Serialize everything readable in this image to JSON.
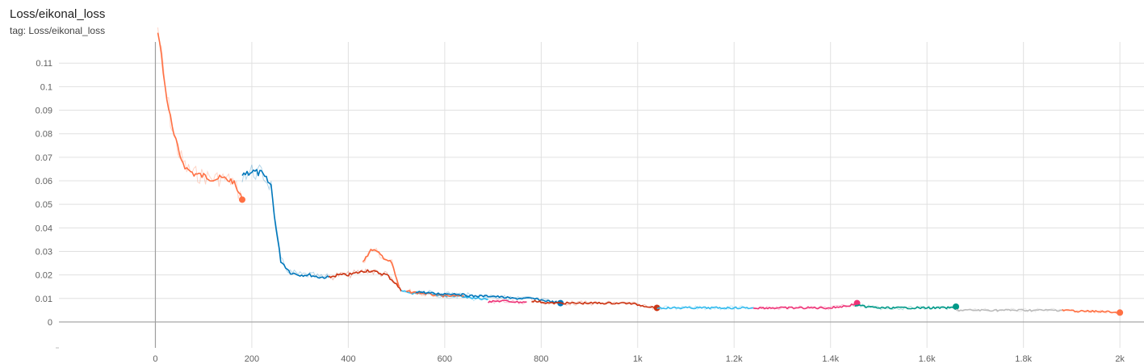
{
  "header": {
    "title": "Loss/eikonal_loss",
    "tag": "tag: Loss/eikonal_loss"
  },
  "chart_data": {
    "type": "line",
    "title": "Loss/eikonal_loss",
    "xlabel": "",
    "ylabel": "",
    "xlim": [
      -200,
      2050
    ],
    "ylim": [
      -0.011,
      0.119
    ],
    "grid": true,
    "xticks": [
      {
        "value": 0,
        "label": "0"
      },
      {
        "value": 200,
        "label": "200"
      },
      {
        "value": 400,
        "label": "400"
      },
      {
        "value": 600,
        "label": "600"
      },
      {
        "value": 800,
        "label": "800"
      },
      {
        "value": 1000,
        "label": "1k"
      },
      {
        "value": 1200,
        "label": "1.2k"
      },
      {
        "value": 1400,
        "label": "1.4k"
      },
      {
        "value": 1600,
        "label": "1.6k"
      },
      {
        "value": 1800,
        "label": "1.8k"
      },
      {
        "value": 2000,
        "label": "2k"
      }
    ],
    "yticks": [
      {
        "value": 0,
        "label": "0"
      },
      {
        "value": 0.01,
        "label": "0.01"
      },
      {
        "value": 0.02,
        "label": "0.02"
      },
      {
        "value": 0.03,
        "label": "0.03"
      },
      {
        "value": 0.04,
        "label": "0.04"
      },
      {
        "value": 0.05,
        "label": "0.05"
      },
      {
        "value": 0.06,
        "label": "0.06"
      },
      {
        "value": 0.07,
        "label": "0.07"
      },
      {
        "value": 0.08,
        "label": "0.08"
      },
      {
        "value": 0.09,
        "label": "0.09"
      },
      {
        "value": 0.1,
        "label": "0.1"
      },
      {
        "value": 0.11,
        "label": "0.11"
      }
    ],
    "series": [
      {
        "color": "#ff7043",
        "x": [
          5,
          20,
          35,
          50,
          65,
          80,
          100,
          120,
          140,
          160,
          180
        ],
        "y": [
          0.125,
          0.1,
          0.082,
          0.071,
          0.065,
          0.063,
          0.062,
          0.061,
          0.061,
          0.06,
          0.052
        ],
        "end_marker": true
      },
      {
        "color": "#0077bb",
        "x": [
          180,
          200,
          220,
          240,
          250,
          260,
          280,
          300,
          320,
          340,
          360
        ],
        "y": [
          0.063,
          0.064,
          0.063,
          0.058,
          0.04,
          0.026,
          0.021,
          0.02,
          0.02,
          0.019,
          0.019
        ]
      },
      {
        "color": "#cc3311",
        "x": [
          360,
          380,
          400,
          420,
          440,
          460,
          480,
          500,
          510
        ],
        "y": [
          0.019,
          0.02,
          0.02,
          0.021,
          0.022,
          0.021,
          0.02,
          0.016,
          0.013
        ]
      },
      {
        "color": "#ff7043",
        "x": [
          430,
          450,
          470,
          490,
          505
        ],
        "y": [
          0.026,
          0.031,
          0.028,
          0.025,
          0.015
        ]
      },
      {
        "color": "#33bbee",
        "x": [
          510,
          540,
          570,
          600,
          630,
          660,
          690
        ],
        "y": [
          0.013,
          0.012,
          0.012,
          0.011,
          0.011,
          0.01,
          0.0095
        ]
      },
      {
        "color": "#ff7043",
        "x": [
          520,
          560,
          600,
          640
        ],
        "y": [
          0.013,
          0.012,
          0.011,
          0.011
        ]
      },
      {
        "color": "#0077bb",
        "x": [
          540,
          580,
          620,
          660,
          700,
          740,
          780,
          810,
          840
        ],
        "y": [
          0.013,
          0.012,
          0.012,
          0.011,
          0.011,
          0.01,
          0.01,
          0.009,
          0.008
        ],
        "end_marker": true
      },
      {
        "color": "#ee3377",
        "x": [
          690,
          720,
          750,
          770
        ],
        "y": [
          0.0085,
          0.009,
          0.0085,
          0.0085
        ]
      },
      {
        "color": "#cc3311",
        "x": [
          780,
          820,
          860,
          900,
          940,
          980,
          1010,
          1040
        ],
        "y": [
          0.009,
          0.008,
          0.008,
          0.008,
          0.008,
          0.008,
          0.007,
          0.006
        ],
        "end_marker": true
      },
      {
        "color": "#33bbee",
        "x": [
          1040,
          1080,
          1120,
          1160,
          1200,
          1240
        ],
        "y": [
          0.006,
          0.006,
          0.006,
          0.006,
          0.006,
          0.006
        ]
      },
      {
        "color": "#ee3377",
        "x": [
          1240,
          1280,
          1320,
          1360,
          1400,
          1440,
          1455
        ],
        "y": [
          0.006,
          0.006,
          0.006,
          0.006,
          0.006,
          0.007,
          0.008
        ],
        "end_marker": true
      },
      {
        "color": "#009988",
        "x": [
          1450,
          1500,
          1550,
          1600,
          1650,
          1660
        ],
        "y": [
          0.007,
          0.006,
          0.006,
          0.006,
          0.006,
          0.0065
        ],
        "end_marker": true
      },
      {
        "color": "#bbbbbb",
        "x": [
          1660,
          1700,
          1750,
          1800,
          1850,
          1880
        ],
        "y": [
          0.005,
          0.005,
          0.005,
          0.005,
          0.005,
          0.005
        ]
      },
      {
        "color": "#ff7043",
        "x": [
          1880,
          1920,
          1960,
          2000
        ],
        "y": [
          0.005,
          0.0045,
          0.0045,
          0.004
        ],
        "end_marker": true
      }
    ]
  }
}
